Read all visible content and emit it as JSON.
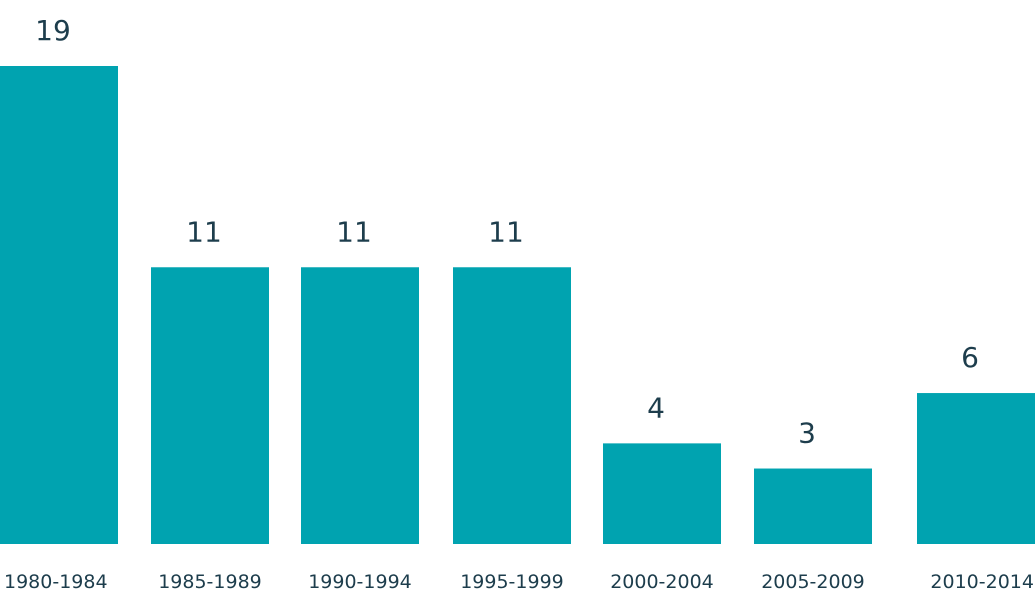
{
  "chart_data": {
    "type": "bar",
    "title": "",
    "xlabel": "",
    "ylabel": "",
    "categories": [
      "1980-1984",
      "1985-1989",
      "1990-1994",
      "1995-1999",
      "2000-2004",
      "2005-2009",
      "2010-2014"
    ],
    "values": [
      19,
      11,
      11,
      11,
      4,
      3,
      6
    ],
    "ylim": [
      0,
      19
    ],
    "grid": false,
    "legend": "none",
    "data_labels": true,
    "bar_color": "#00a3b0",
    "text_color": "#1d3d4c"
  }
}
